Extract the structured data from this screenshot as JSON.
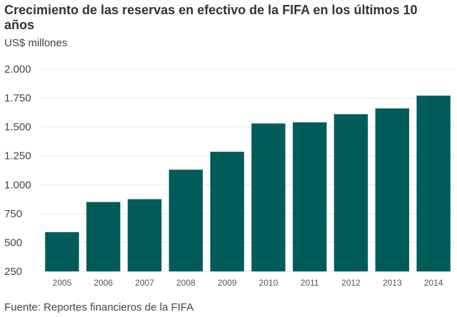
{
  "chart_data": {
    "type": "bar",
    "title": "Crecimiento de las reservas en efectivo de la FIFA en los últimos 10 años",
    "ylabel": "US$ millones",
    "xlabel": "",
    "source": "Fuente: Reportes financieros de la FIFA",
    "categories": [
      "2005",
      "2006",
      "2007",
      "2008",
      "2009",
      "2010",
      "2011",
      "2012",
      "2013",
      "2014"
    ],
    "values": [
      590,
      850,
      875,
      1130,
      1285,
      1530,
      1540,
      1610,
      1660,
      1770
    ],
    "yticks": [
      250,
      500,
      750,
      1000,
      1250,
      1500,
      1750,
      2000
    ],
    "ytick_labels": [
      "250",
      "500",
      "750",
      "1.000",
      "1.250",
      "1.500",
      "1.750",
      "2.000"
    ],
    "ylim": [
      250,
      2000
    ],
    "grid": true,
    "bar_color": "#005c5a",
    "grid_color": "#e6e6e6"
  }
}
